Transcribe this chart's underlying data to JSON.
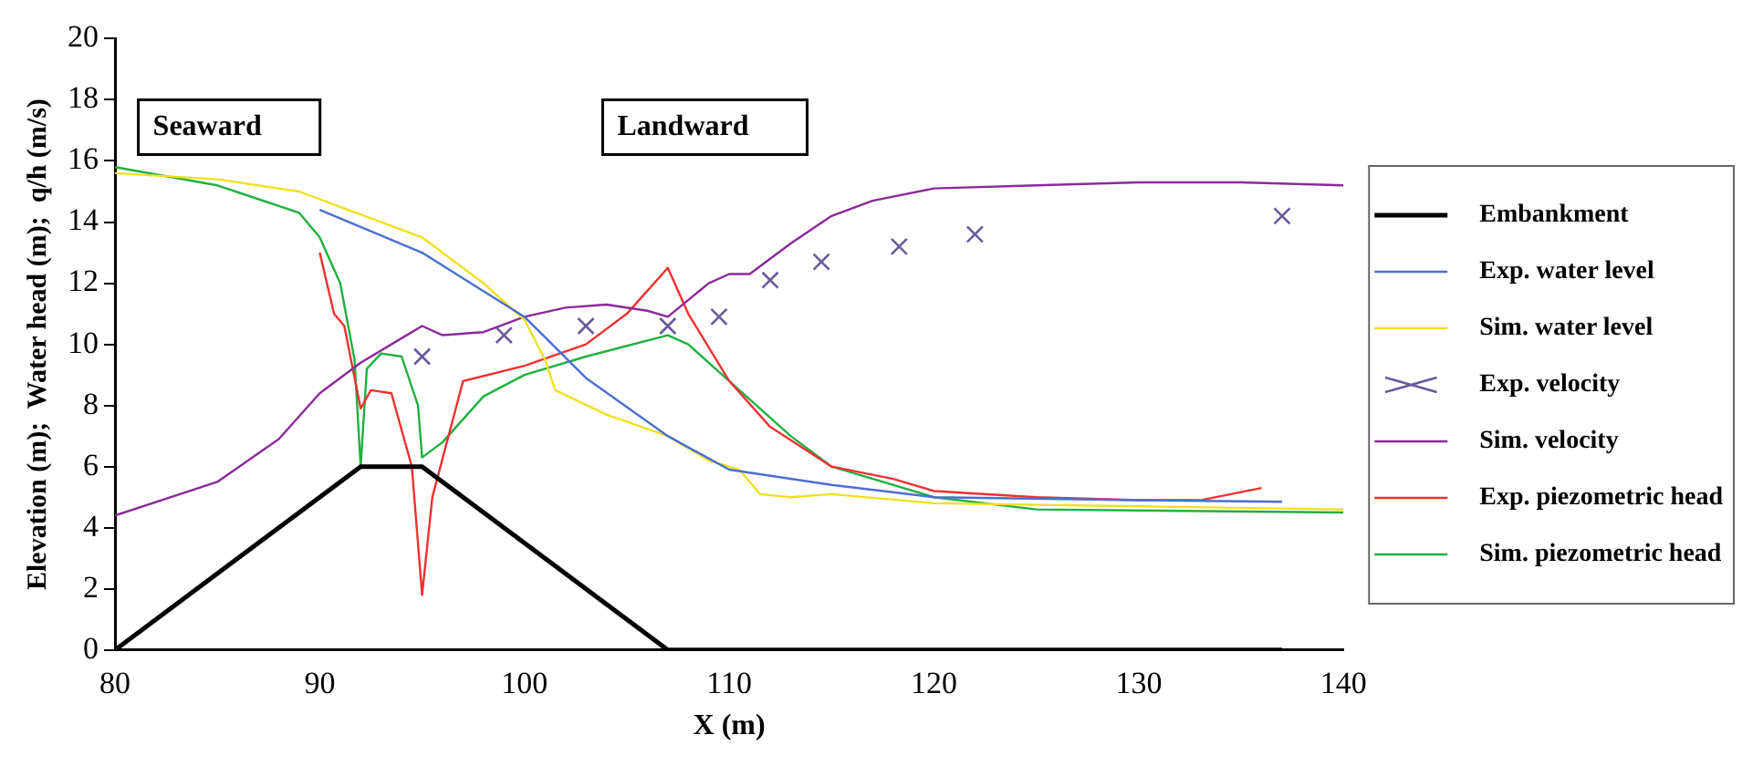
{
  "chart_data": {
    "type": "line",
    "xlabel": "X (m)",
    "ylabel": "Elevation (m);  Water head (m);  q/h (m/s)",
    "xlim": [
      80,
      140
    ],
    "xticks": [
      80,
      90,
      100,
      110,
      120,
      130,
      140
    ],
    "ylim": [
      0,
      20
    ],
    "yticks": [
      0,
      2,
      4,
      6,
      8,
      10,
      12,
      14,
      16,
      18,
      20
    ],
    "grid": false,
    "legend": "right",
    "annotations": [
      "Seaward",
      "Landward"
    ],
    "series": [
      {
        "name": "Embankment",
        "color": "#000000",
        "marker": "none",
        "x": [
          80,
          92,
          95,
          107,
          137
        ],
        "values": [
          0,
          6,
          6,
          0,
          0
        ]
      },
      {
        "name": "Exp. water level",
        "color": "#4a6fd0",
        "type": "line",
        "marker": "none",
        "x": [
          90,
          95,
          100,
          103,
          107,
          110,
          115,
          120,
          130,
          137
        ],
        "values": [
          14.4,
          13.0,
          10.9,
          8.9,
          7.0,
          5.9,
          5.4,
          5.0,
          4.9,
          4.85
        ]
      },
      {
        "name": "Sim. water level",
        "color": "#f0e020",
        "type": "line",
        "marker": "none",
        "x": [
          80,
          85,
          89,
          91,
          95,
          98,
          100,
          101,
          101.5,
          104,
          107,
          109,
          110.5,
          111.5,
          113,
          115,
          120,
          130,
          140
        ],
        "values": [
          15.6,
          15.4,
          15.0,
          14.5,
          13.5,
          12.0,
          10.8,
          9.5,
          8.5,
          7.7,
          7.0,
          6.2,
          5.9,
          5.1,
          5.0,
          5.1,
          4.8,
          4.7,
          4.6
        ]
      },
      {
        "name": "Exp. velocity",
        "color": "#6a5a9a",
        "type": "scatter",
        "marker": "cross",
        "x": [
          95,
          99,
          103,
          107,
          109.5,
          112,
          114.5,
          118.3,
          122,
          137
        ],
        "values": [
          9.6,
          10.3,
          10.6,
          10.6,
          10.9,
          12.1,
          12.7,
          13.2,
          13.6,
          14.2
        ]
      },
      {
        "name": "Sim. velocity",
        "color": "#8a2a9a",
        "type": "line",
        "marker": "none",
        "x": [
          80,
          85,
          88,
          90,
          92,
          94,
          95,
          96,
          98,
          100,
          102,
          104,
          106,
          107,
          109,
          110,
          111,
          113,
          115,
          117,
          120,
          125,
          130,
          135,
          140
        ],
        "values": [
          4.4,
          5.5,
          6.9,
          8.4,
          9.4,
          10.2,
          10.6,
          10.3,
          10.4,
          10.9,
          11.2,
          11.3,
          11.1,
          10.9,
          12.0,
          12.3,
          12.3,
          13.3,
          14.2,
          14.7,
          15.1,
          15.2,
          15.3,
          15.3,
          15.2
        ]
      },
      {
        "name": "Exp. piezometric head",
        "color": "#f03030",
        "type": "line",
        "marker": "none",
        "x": [
          90,
          90.7,
          91.2,
          92,
          92.5,
          93.5,
          94.5,
          95,
          95.5,
          97,
          100,
          103,
          105,
          107,
          108,
          110,
          112,
          115,
          118,
          120,
          125,
          130,
          133,
          136
        ],
        "values": [
          13.0,
          11.0,
          10.6,
          7.9,
          8.5,
          8.4,
          6.0,
          1.8,
          5.0,
          8.8,
          9.3,
          10.0,
          11.0,
          12.5,
          11.0,
          8.8,
          7.3,
          6.0,
          5.6,
          5.2,
          5.0,
          4.9,
          4.9,
          5.3
        ]
      },
      {
        "name": "Sim. piezometric head",
        "color": "#20b040",
        "type": "line",
        "marker": "none",
        "x": [
          80,
          85,
          89,
          90,
          91,
          91.7,
          92,
          92.3,
          93,
          94,
          94.8,
          95,
          96,
          98,
          100,
          103,
          107,
          108,
          110,
          113,
          115,
          120,
          125,
          140
        ],
        "values": [
          15.8,
          15.2,
          14.3,
          13.5,
          12.0,
          9.5,
          6.0,
          9.2,
          9.7,
          9.6,
          8.0,
          6.3,
          6.8,
          8.3,
          9.0,
          9.6,
          10.3,
          10.0,
          8.8,
          7.0,
          6.0,
          5.0,
          4.6,
          4.5
        ]
      }
    ]
  }
}
